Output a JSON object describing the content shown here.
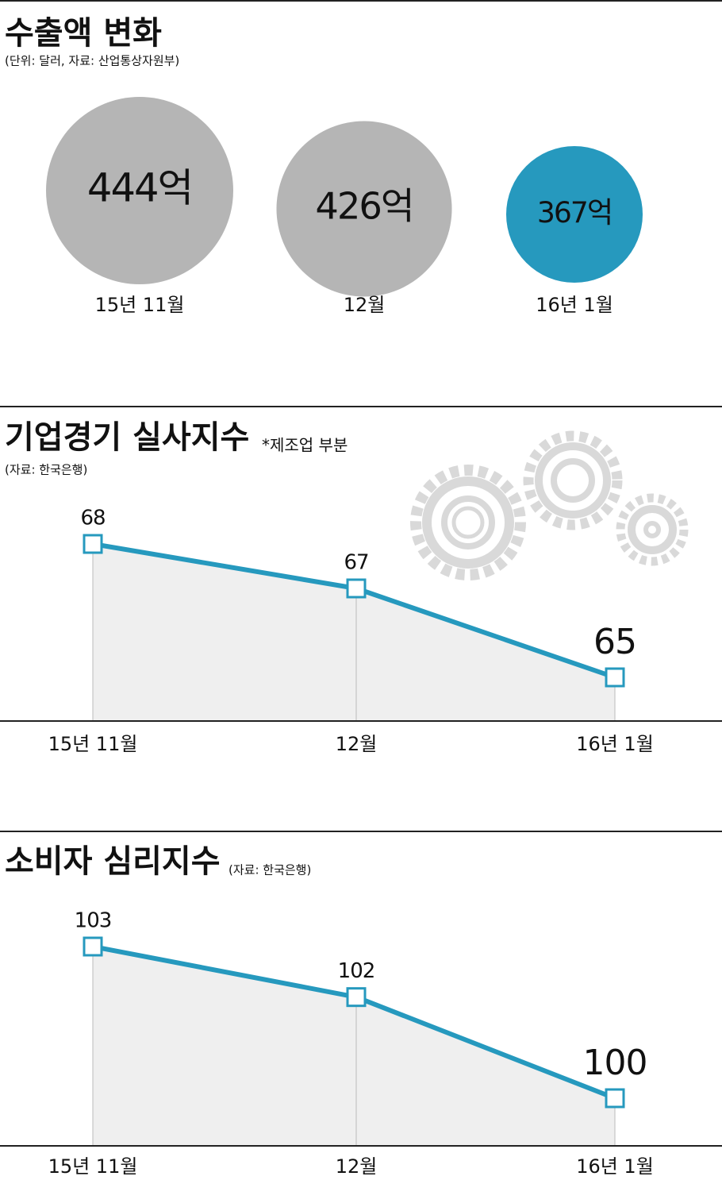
{
  "chart_data": [
    {
      "type": "bubble",
      "title": "수출액 변화",
      "subtitle": "(단위: 달러, 자료: 산업통상자원부)",
      "categories": [
        "15년 11월",
        "12월",
        "16년 1월"
      ],
      "values": [
        444,
        426,
        367
      ],
      "value_labels": [
        "444억",
        "426억",
        "367억"
      ],
      "colors": [
        "#b5b5b5",
        "#b5b5b5",
        "#2699be"
      ]
    },
    {
      "type": "line",
      "title": "기업경기 실사지수",
      "note": "*제조업 부분",
      "subtitle": "(자료: 한국은행)",
      "categories": [
        "15년 11월",
        "12월",
        "16년 1월"
      ],
      "values": [
        68,
        67,
        65
      ],
      "color": "#2699be"
    },
    {
      "type": "line",
      "title": "소비자 심리지수",
      "subtitle": "(자료: 한국은행)",
      "categories": [
        "15년 11월",
        "12월",
        "16년 1월"
      ],
      "values": [
        103,
        102,
        100
      ],
      "color": "#2699be"
    }
  ]
}
